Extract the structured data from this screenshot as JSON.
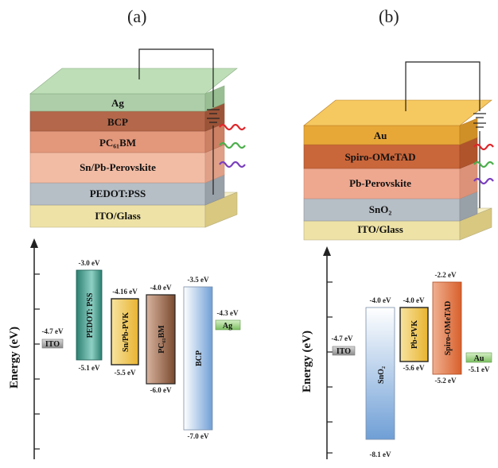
{
  "panels": [
    {
      "id": "a",
      "label": "(a)"
    },
    {
      "id": "b",
      "label": "(b)"
    }
  ],
  "device_a": {
    "layers": [
      {
        "name": "Ag",
        "color": "#9ccf9a"
      },
      {
        "name": "BCP",
        "color": "#b4674a"
      },
      {
        "name": "PC₆₁BM",
        "color": "#e0967a"
      },
      {
        "name": "Sn/Pb-Perovskite",
        "color": "#f0b8a0"
      },
      {
        "name": "PEDOT:PSS",
        "color": "#b0b8c0"
      },
      {
        "name": "ITO/Glass",
        "color": "#eee2a6"
      }
    ]
  },
  "device_b": {
    "layers": [
      {
        "name": "Au",
        "color": "#f2b84a"
      },
      {
        "name": "Spiro-OMeTAD",
        "color": "#c9663a"
      },
      {
        "name": "Pb-Perovskite",
        "color": "#eea890"
      },
      {
        "name": "SnO₂",
        "color": "#b0b8c0"
      },
      {
        "name": "ITO/Glass",
        "color": "#eee2a6"
      }
    ]
  },
  "chart_data": [
    {
      "type": "energy-level-diagram",
      "ylabel": "Energy (eV)",
      "levels": [
        {
          "name": "ITO",
          "top": -4.7,
          "top_label": "-4.7 eV",
          "bottom_label": "",
          "color": "#b8b8b8"
        },
        {
          "name": "PEDOT: PSS",
          "top": -3.0,
          "bottom": -5.1,
          "top_label": "-3.0 eV",
          "bottom_label": "-5.1 eV",
          "color": "#2f8f7c"
        },
        {
          "name": "Sn/Pb-PVK",
          "top": -4.16,
          "bottom": -5.5,
          "top_label": "-4.16 eV",
          "bottom_label": "-5.5 eV",
          "color": "#f2c14a"
        },
        {
          "name": "PC₆₁BM",
          "top": -4.0,
          "bottom": -6.0,
          "top_label": "-4.0 eV",
          "bottom_label": "-6.0 eV",
          "color": "#8a5a3a"
        },
        {
          "name": "BCP",
          "top": -3.5,
          "bottom": -7.0,
          "top_label": "-3.5 eV",
          "bottom_label": "-7.0 eV",
          "color": "#7fa8d8"
        },
        {
          "name": "Ag",
          "top": -4.3,
          "top_label": "-4.3 eV",
          "bottom_label": "",
          "color": "#9ccf8a"
        }
      ]
    },
    {
      "type": "energy-level-diagram",
      "ylabel": "Energy (eV)",
      "levels": [
        {
          "name": "ITO",
          "top": -4.7,
          "top_label": "-4.7 eV",
          "bottom_label": "",
          "color": "#b8b8b8"
        },
        {
          "name": "SnO₂",
          "top": -4.0,
          "bottom": -8.1,
          "top_label": "-4.0 eV",
          "bottom_label": "-8.1 eV",
          "color": "#7fa8d8"
        },
        {
          "name": "Pb-PVK",
          "top": -4.0,
          "bottom": -5.6,
          "top_label": "-4.0 eV",
          "bottom_label": "-5.6 eV",
          "color": "#f2c14a"
        },
        {
          "name": "Spiro-OMeTAD",
          "top": -2.2,
          "bottom": -5.2,
          "top_label": "-2.2 eV",
          "bottom_label": "-5.2 eV",
          "color": "#e0703c"
        },
        {
          "name": "Au",
          "top": -5.1,
          "top_label": "",
          "bottom_label": "-5.1 eV",
          "color": "#9ccf8a"
        }
      ]
    }
  ]
}
